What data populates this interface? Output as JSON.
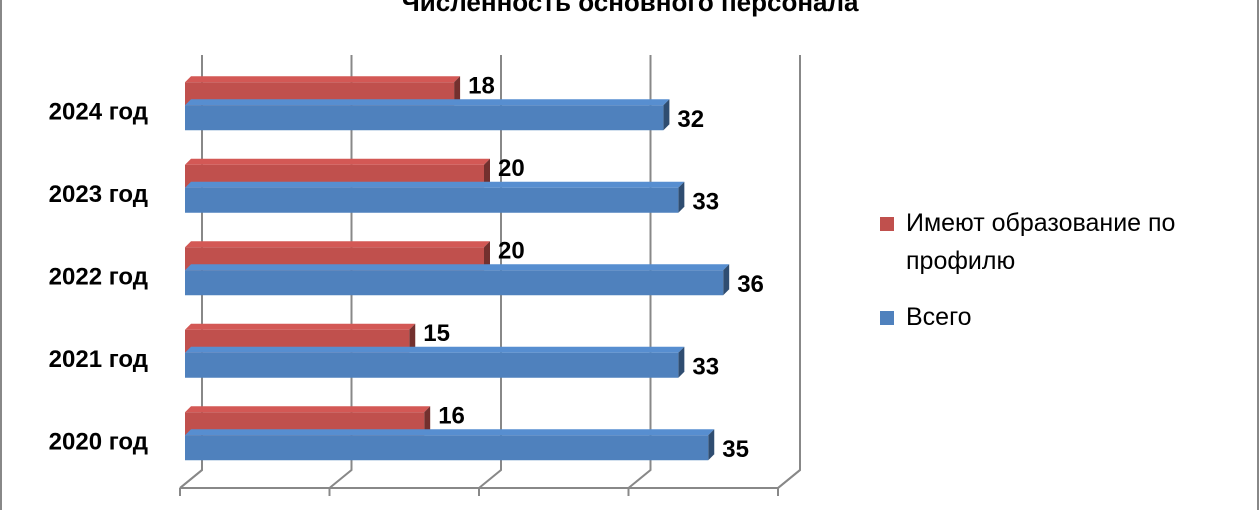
{
  "chart_data": {
    "type": "bar3d-horizontal",
    "title": "Численность основного персонала",
    "categories": [
      "2024 год",
      "2023 год",
      "2022 год",
      "2021 год",
      "2020 год"
    ],
    "series": [
      {
        "name": "Имеют образование по профилю",
        "color": "#c0504d",
        "values": [
          18,
          20,
          20,
          15,
          16
        ]
      },
      {
        "name": "Всего",
        "color": "#4f81bd",
        "values": [
          32,
          33,
          36,
          33,
          35
        ]
      }
    ],
    "xlim": [
      0,
      40
    ],
    "xticks": [
      0,
      10,
      20,
      30,
      40
    ],
    "grid": true
  }
}
